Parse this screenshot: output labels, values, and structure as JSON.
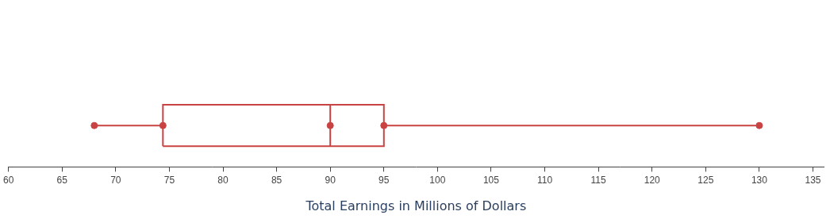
{
  "chart_data": {
    "type": "box",
    "xlabel": "Total Earnings in Millions of Dollars",
    "stats": {
      "min": 68,
      "q1": 74.4,
      "median": 90,
      "q3": 95,
      "max": 130
    },
    "color": "#c94343",
    "xlim": [
      60,
      136
    ],
    "xticks": [
      60,
      65,
      70,
      75,
      80,
      85,
      90,
      95,
      100,
      105,
      110,
      115,
      120,
      125,
      130,
      135
    ],
    "grid": false
  }
}
